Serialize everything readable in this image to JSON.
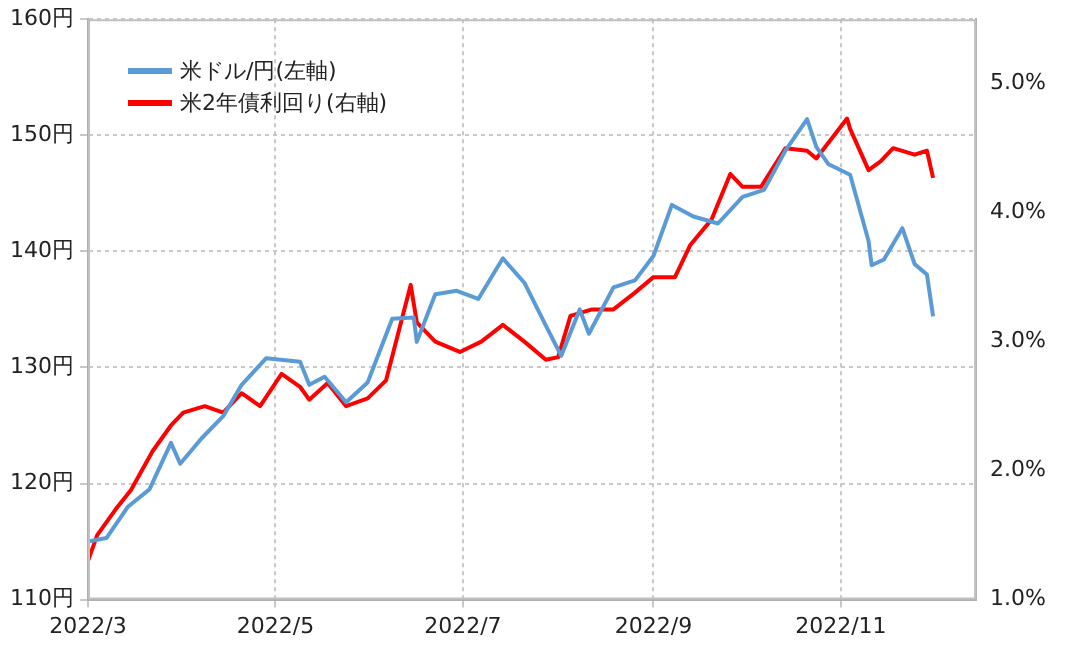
{
  "chart_data": {
    "type": "line",
    "legend": "top left",
    "grid": true,
    "marker": "none",
    "line_style": "solid",
    "xlim": [
      "2022-03-01",
      "2022-12-15"
    ],
    "xticks": [
      {
        "value": "2022-03-01",
        "label": "2022/3"
      },
      {
        "value": "2022-05-01",
        "label": "2022/5"
      },
      {
        "value": "2022-07-01",
        "label": "2022/7"
      },
      {
        "value": "2022-09-01",
        "label": "2022/9"
      },
      {
        "value": "2022-11-01",
        "label": "2022/11"
      }
    ],
    "ylim": [
      110,
      160
    ],
    "yticks": [
      {
        "value": 110,
        "label": "110円"
      },
      {
        "value": 120,
        "label": "120円"
      },
      {
        "value": 130,
        "label": "130円"
      },
      {
        "value": 140,
        "label": "140円"
      },
      {
        "value": 150,
        "label": "150円"
      },
      {
        "value": 160,
        "label": "160円"
      }
    ],
    "y2lim": [
      1.0,
      5.5
    ],
    "y2ticks": [
      {
        "value": 1,
        "label": "1.0%"
      },
      {
        "value": 2,
        "label": "2.0%"
      },
      {
        "value": 3,
        "label": "3.0%"
      },
      {
        "value": 4,
        "label": "4.0%"
      },
      {
        "value": 5,
        "label": "5.0%"
      }
    ],
    "series": [
      {
        "name": "米ドル/円(左軸)",
        "color": "#5b9bd5",
        "x": [
          "2022-03-01",
          "2022-03-07",
          "2022-03-14",
          "2022-03-21",
          "2022-03-28",
          "2022-03-31",
          "2022-04-07",
          "2022-04-14",
          "2022-04-20",
          "2022-04-28",
          "2022-05-09",
          "2022-05-12",
          "2022-05-17",
          "2022-05-24",
          "2022-05-31",
          "2022-06-08",
          "2022-06-15",
          "2022-06-16",
          "2022-06-22",
          "2022-06-29",
          "2022-07-06",
          "2022-07-14",
          "2022-07-21",
          "2022-07-28",
          "2022-08-02",
          "2022-08-08",
          "2022-08-11",
          "2022-08-19",
          "2022-08-26",
          "2022-09-01",
          "2022-09-07",
          "2022-09-14",
          "2022-09-22",
          "2022-09-30",
          "2022-10-07",
          "2022-10-14",
          "2022-10-21",
          "2022-10-24",
          "2022-10-28",
          "2022-11-04",
          "2022-11-10",
          "2022-11-11",
          "2022-11-15",
          "2022-11-21",
          "2022-11-25",
          "2022-11-29",
          "2022-12-01"
        ],
        "values": [
          115,
          115.3,
          118,
          119.5,
          123.5,
          121.7,
          123.9,
          125.8,
          128.5,
          130.8,
          130.5,
          128.5,
          129.2,
          127,
          128.7,
          134.2,
          134.3,
          132.2,
          136.3,
          136.6,
          135.9,
          139.4,
          137.3,
          133.6,
          131,
          135,
          132.9,
          136.9,
          137.5,
          139.6,
          144,
          143,
          142.4,
          144.7,
          145.3,
          148.7,
          151.4,
          149,
          147.5,
          146.6,
          140.9,
          138.8,
          139.3,
          142,
          138.9,
          138,
          134.4
        ]
      },
      {
        "name": "米2年債利回り(右軸)",
        "color": "#ff0000",
        "axis": "y2",
        "x": [
          "2022-03-01",
          "2022-03-04",
          "2022-03-10",
          "2022-03-15",
          "2022-03-22",
          "2022-03-28",
          "2022-04-01",
          "2022-04-08",
          "2022-04-14",
          "2022-04-20",
          "2022-04-26",
          "2022-05-03",
          "2022-05-09",
          "2022-05-12",
          "2022-05-18",
          "2022-05-24",
          "2022-05-31",
          "2022-06-06",
          "2022-06-14",
          "2022-06-16",
          "2022-06-22",
          "2022-06-30",
          "2022-07-07",
          "2022-07-14",
          "2022-07-21",
          "2022-07-28",
          "2022-08-01",
          "2022-08-05",
          "2022-08-12",
          "2022-08-19",
          "2022-08-26",
          "2022-09-01",
          "2022-09-08",
          "2022-09-13",
          "2022-09-20",
          "2022-09-26",
          "2022-09-30",
          "2022-10-06",
          "2022-10-14",
          "2022-10-21",
          "2022-10-24",
          "2022-11-03",
          "2022-11-04",
          "2022-11-10",
          "2022-11-14",
          "2022-11-18",
          "2022-11-25",
          "2022-11-29",
          "2022-12-01"
        ],
        "values": [
          1.3,
          1.5,
          1.7,
          1.85,
          2.15,
          2.35,
          2.45,
          2.5,
          2.45,
          2.6,
          2.5,
          2.75,
          2.65,
          2.55,
          2.68,
          2.5,
          2.56,
          2.7,
          3.44,
          3.15,
          3.0,
          2.92,
          3.0,
          3.13,
          3.0,
          2.86,
          2.88,
          3.2,
          3.25,
          3.25,
          3.38,
          3.5,
          3.5,
          3.75,
          3.95,
          4.3,
          4.2,
          4.2,
          4.5,
          4.48,
          4.42,
          4.73,
          4.65,
          4.33,
          4.4,
          4.5,
          4.45,
          4.48,
          4.27
        ]
      }
    ]
  }
}
